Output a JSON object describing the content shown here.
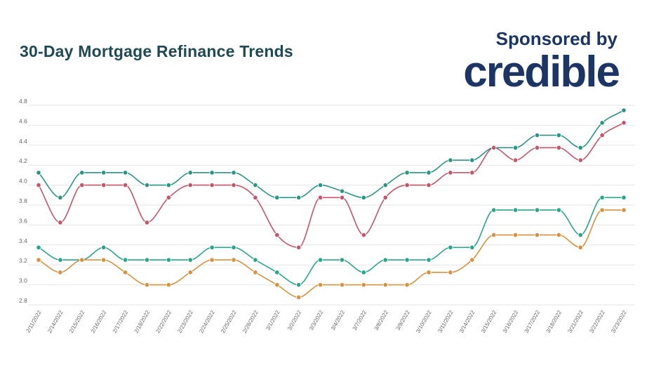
{
  "header": {
    "title": "30-Day Mortgage Refinance Trends",
    "sponsor_text": "Sponsored by",
    "logo_text": "credible"
  },
  "chart_data": {
    "type": "line",
    "title": "30-Day Mortgage Refinance Trends",
    "xlabel": "",
    "ylabel": "",
    "ylim": [
      2.8,
      4.8
    ],
    "yticks": [
      "2.8",
      "3.0",
      "3.2",
      "3.4",
      "3.6",
      "3.8",
      "4.0",
      "4.2",
      "4.4",
      "4.6",
      "4.8"
    ],
    "grid": true,
    "legend": "none",
    "categories": [
      "2/11/2022",
      "2/14/2022",
      "2/15/2022",
      "2/16/2022",
      "2/17/2022",
      "2/18/2022",
      "2/22/2022",
      "2/23/2022",
      "2/24/2022",
      "2/25/2022",
      "2/28/2022",
      "3/1/2022",
      "3/2/2022",
      "3/3/2022",
      "3/4/2022",
      "3/7/2022",
      "3/8/2022",
      "3/9/2022",
      "3/10/2022",
      "3/11/2022",
      "3/14/2022",
      "3/15/2022",
      "3/16/2022",
      "3/17/2022",
      "3/18/2022",
      "3/21/2022",
      "3/22/2022",
      "3/23/2022"
    ],
    "series": [
      {
        "color": "#2a9582",
        "values": [
          4.125,
          3.875,
          4.125,
          4.125,
          4.125,
          4.0,
          4.0,
          4.125,
          4.125,
          4.125,
          4.0,
          3.875,
          3.875,
          4.0,
          3.94,
          3.875,
          4.0,
          4.125,
          4.125,
          4.25,
          4.25,
          4.375,
          4.375,
          4.5,
          4.5,
          4.375,
          4.625,
          4.75
        ]
      },
      {
        "color": "#c2566a",
        "values": [
          4.0,
          3.625,
          4.0,
          4.0,
          4.0,
          3.625,
          3.875,
          4.0,
          4.0,
          4.0,
          3.875,
          3.5,
          3.375,
          3.875,
          3.875,
          3.5,
          3.875,
          4.0,
          4.0,
          4.125,
          4.125,
          4.375,
          4.25,
          4.375,
          4.375,
          4.25,
          4.5,
          4.625
        ]
      },
      {
        "color": "#2aa48a",
        "values": [
          3.375,
          3.25,
          3.25,
          3.375,
          3.25,
          3.25,
          3.25,
          3.25,
          3.375,
          3.375,
          3.25,
          3.125,
          3.0,
          3.25,
          3.25,
          3.125,
          3.25,
          3.25,
          3.25,
          3.375,
          3.375,
          3.75,
          3.75,
          3.75,
          3.75,
          3.5,
          3.875,
          3.875
        ]
      },
      {
        "color": "#d6923f",
        "values": [
          3.25,
          3.125,
          3.25,
          3.25,
          3.125,
          3.0,
          3.0,
          3.125,
          3.25,
          3.25,
          3.125,
          3.0,
          2.875,
          3.0,
          3.0,
          3.0,
          3.0,
          3.0,
          3.125,
          3.125,
          3.25,
          3.5,
          3.5,
          3.5,
          3.5,
          3.375,
          3.75,
          3.75
        ]
      }
    ]
  }
}
